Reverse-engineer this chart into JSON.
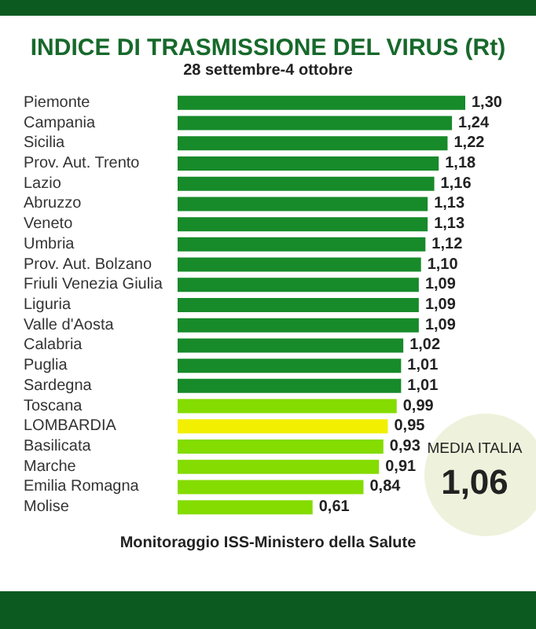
{
  "chart_data": {
    "type": "bar",
    "orientation": "horizontal",
    "title": "INDICE DI TRASMISSIONE DEL VIRUS (Rt)",
    "subtitle": "28 settembre-4 ottobre",
    "categories": [
      "Piemonte",
      "Campania",
      "Sicilia",
      "Prov. Aut. Trento",
      "Lazio",
      "Abruzzo",
      "Veneto",
      "Umbria",
      "Prov. Aut. Bolzano",
      "Friuli Venezia Giulia",
      "Liguria",
      "Valle d'Aosta",
      "Calabria",
      "Puglia",
      "Sardegna",
      "Toscana",
      "LOMBARDIA",
      "Basilicata",
      "Marche",
      "Emilia Romagna",
      "Molise"
    ],
    "values": [
      1.3,
      1.24,
      1.22,
      1.18,
      1.16,
      1.13,
      1.13,
      1.12,
      1.1,
      1.09,
      1.09,
      1.09,
      1.02,
      1.01,
      1.01,
      0.99,
      0.95,
      0.93,
      0.91,
      0.84,
      0.61
    ],
    "value_labels": [
      "1,30",
      "1,24",
      "1,22",
      "1,18",
      "1,16",
      "1,13",
      "1,13",
      "1,12",
      "1,10",
      "1,09",
      "1,09",
      "1,09",
      "1,02",
      "1,01",
      "1,01",
      "0,99",
      "0,95",
      "0,93",
      "0,91",
      "0,84",
      "0,61"
    ],
    "colors": [
      "#178a2a",
      "#178a2a",
      "#178a2a",
      "#178a2a",
      "#178a2a",
      "#178a2a",
      "#178a2a",
      "#178a2a",
      "#178a2a",
      "#178a2a",
      "#178a2a",
      "#178a2a",
      "#178a2a",
      "#178a2a",
      "#178a2a",
      "#84dc00",
      "#f2f000",
      "#84dc00",
      "#84dc00",
      "#84dc00",
      "#84dc00"
    ],
    "annotations": [
      "MEDIA ITALIA",
      "1,06",
      "Monitoraggio ISS-Ministero della Salute"
    ]
  }
}
